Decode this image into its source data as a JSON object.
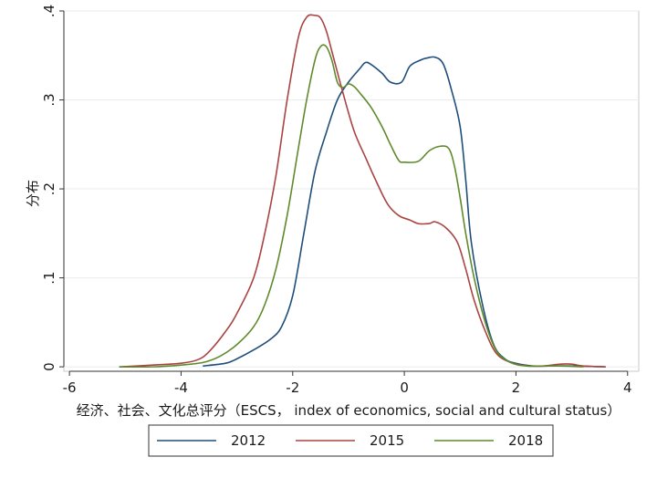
{
  "chart_data": {
    "type": "line",
    "xlabel": "经济、社会、文化总评分（ESCS， index of economics, social and cultural status）",
    "ylabel": "分布",
    "xlim": [
      -6.1,
      4.2
    ],
    "ylim": [
      -0.005,
      0.4
    ],
    "x_ticks": [
      {
        "value": -6,
        "label": "-6"
      },
      {
        "value": -4,
        "label": "-4"
      },
      {
        "value": -2,
        "label": "-2"
      },
      {
        "value": 0,
        "label": "0"
      },
      {
        "value": 2,
        "label": "2"
      },
      {
        "value": 4,
        "label": "4"
      }
    ],
    "y_ticks": [
      {
        "value": 0,
        "label": "0"
      },
      {
        "value": 0.1,
        "label": ".1"
      },
      {
        "value": 0.2,
        "label": ".2"
      },
      {
        "value": 0.3,
        "label": ".3"
      },
      {
        "value": 0.4,
        "label": ".4"
      }
    ],
    "grid": true,
    "legend_position": "bottom",
    "series": [
      {
        "name": "2012",
        "color": "#1f4e79",
        "points": [
          [
            -3.6,
            0.001
          ],
          [
            -3.2,
            0.004
          ],
          [
            -3.0,
            0.009
          ],
          [
            -2.7,
            0.019
          ],
          [
            -2.4,
            0.031
          ],
          [
            -2.2,
            0.045
          ],
          [
            -2.0,
            0.08
          ],
          [
            -1.8,
            0.15
          ],
          [
            -1.6,
            0.22
          ],
          [
            -1.4,
            0.263
          ],
          [
            -1.2,
            0.3
          ],
          [
            -1.0,
            0.32
          ],
          [
            -0.8,
            0.335
          ],
          [
            -0.7,
            0.342
          ],
          [
            -0.6,
            0.34
          ],
          [
            -0.4,
            0.33
          ],
          [
            -0.25,
            0.32
          ],
          [
            -0.05,
            0.32
          ],
          [
            0.1,
            0.338
          ],
          [
            0.3,
            0.345
          ],
          [
            0.4,
            0.347
          ],
          [
            0.55,
            0.348
          ],
          [
            0.7,
            0.34
          ],
          [
            0.85,
            0.31
          ],
          [
            1.0,
            0.27
          ],
          [
            1.1,
            0.21
          ],
          [
            1.2,
            0.14
          ],
          [
            1.4,
            0.07
          ],
          [
            1.6,
            0.025
          ],
          [
            1.8,
            0.009
          ],
          [
            2.0,
            0.004
          ],
          [
            2.3,
            0.001
          ],
          [
            2.6,
            0.001
          ],
          [
            3.0,
            0.001
          ],
          [
            3.6,
            0.0
          ]
        ]
      },
      {
        "name": "2015",
        "color": "#a94442",
        "points": [
          [
            -5.1,
            0.0
          ],
          [
            -4.5,
            0.002
          ],
          [
            -4.0,
            0.004
          ],
          [
            -3.7,
            0.008
          ],
          [
            -3.5,
            0.017
          ],
          [
            -3.2,
            0.04
          ],
          [
            -3.0,
            0.06
          ],
          [
            -2.7,
            0.1
          ],
          [
            -2.5,
            0.15
          ],
          [
            -2.3,
            0.215
          ],
          [
            -2.1,
            0.3
          ],
          [
            -1.9,
            0.37
          ],
          [
            -1.75,
            0.393
          ],
          [
            -1.6,
            0.395
          ],
          [
            -1.5,
            0.392
          ],
          [
            -1.4,
            0.378
          ],
          [
            -1.3,
            0.355
          ],
          [
            -1.1,
            0.308
          ],
          [
            -0.9,
            0.265
          ],
          [
            -0.7,
            0.236
          ],
          [
            -0.5,
            0.208
          ],
          [
            -0.3,
            0.183
          ],
          [
            -0.1,
            0.17
          ],
          [
            0.1,
            0.165
          ],
          [
            0.25,
            0.161
          ],
          [
            0.45,
            0.161
          ],
          [
            0.55,
            0.163
          ],
          [
            0.75,
            0.156
          ],
          [
            0.95,
            0.14
          ],
          [
            1.1,
            0.11
          ],
          [
            1.25,
            0.075
          ],
          [
            1.45,
            0.04
          ],
          [
            1.65,
            0.015
          ],
          [
            1.9,
            0.005
          ],
          [
            2.2,
            0.001
          ],
          [
            2.5,
            0.001
          ],
          [
            2.8,
            0.003
          ],
          [
            3.0,
            0.003
          ],
          [
            3.2,
            0.001
          ],
          [
            3.6,
            0.0
          ]
        ]
      },
      {
        "name": "2018",
        "color": "#5f8a2c",
        "points": [
          [
            -5.1,
            0.0
          ],
          [
            -4.5,
            0.0
          ],
          [
            -4.0,
            0.002
          ],
          [
            -3.6,
            0.005
          ],
          [
            -3.3,
            0.012
          ],
          [
            -3.0,
            0.025
          ],
          [
            -2.7,
            0.045
          ],
          [
            -2.5,
            0.07
          ],
          [
            -2.3,
            0.11
          ],
          [
            -2.1,
            0.17
          ],
          [
            -1.9,
            0.245
          ],
          [
            -1.75,
            0.3
          ],
          [
            -1.6,
            0.345
          ],
          [
            -1.5,
            0.36
          ],
          [
            -1.4,
            0.36
          ],
          [
            -1.3,
            0.345
          ],
          [
            -1.2,
            0.32
          ],
          [
            -1.1,
            0.314
          ],
          [
            -1.0,
            0.318
          ],
          [
            -0.9,
            0.315
          ],
          [
            -0.8,
            0.308
          ],
          [
            -0.6,
            0.292
          ],
          [
            -0.4,
            0.27
          ],
          [
            -0.25,
            0.25
          ],
          [
            -0.1,
            0.232
          ],
          [
            0.0,
            0.23
          ],
          [
            0.25,
            0.231
          ],
          [
            0.45,
            0.243
          ],
          [
            0.65,
            0.248
          ],
          [
            0.8,
            0.245
          ],
          [
            0.9,
            0.225
          ],
          [
            1.0,
            0.19
          ],
          [
            1.1,
            0.15
          ],
          [
            1.25,
            0.1
          ],
          [
            1.45,
            0.05
          ],
          [
            1.65,
            0.018
          ],
          [
            1.9,
            0.005
          ],
          [
            2.2,
            0.001
          ],
          [
            2.8,
            0.001
          ],
          [
            3.2,
            0.0
          ]
        ]
      }
    ]
  }
}
